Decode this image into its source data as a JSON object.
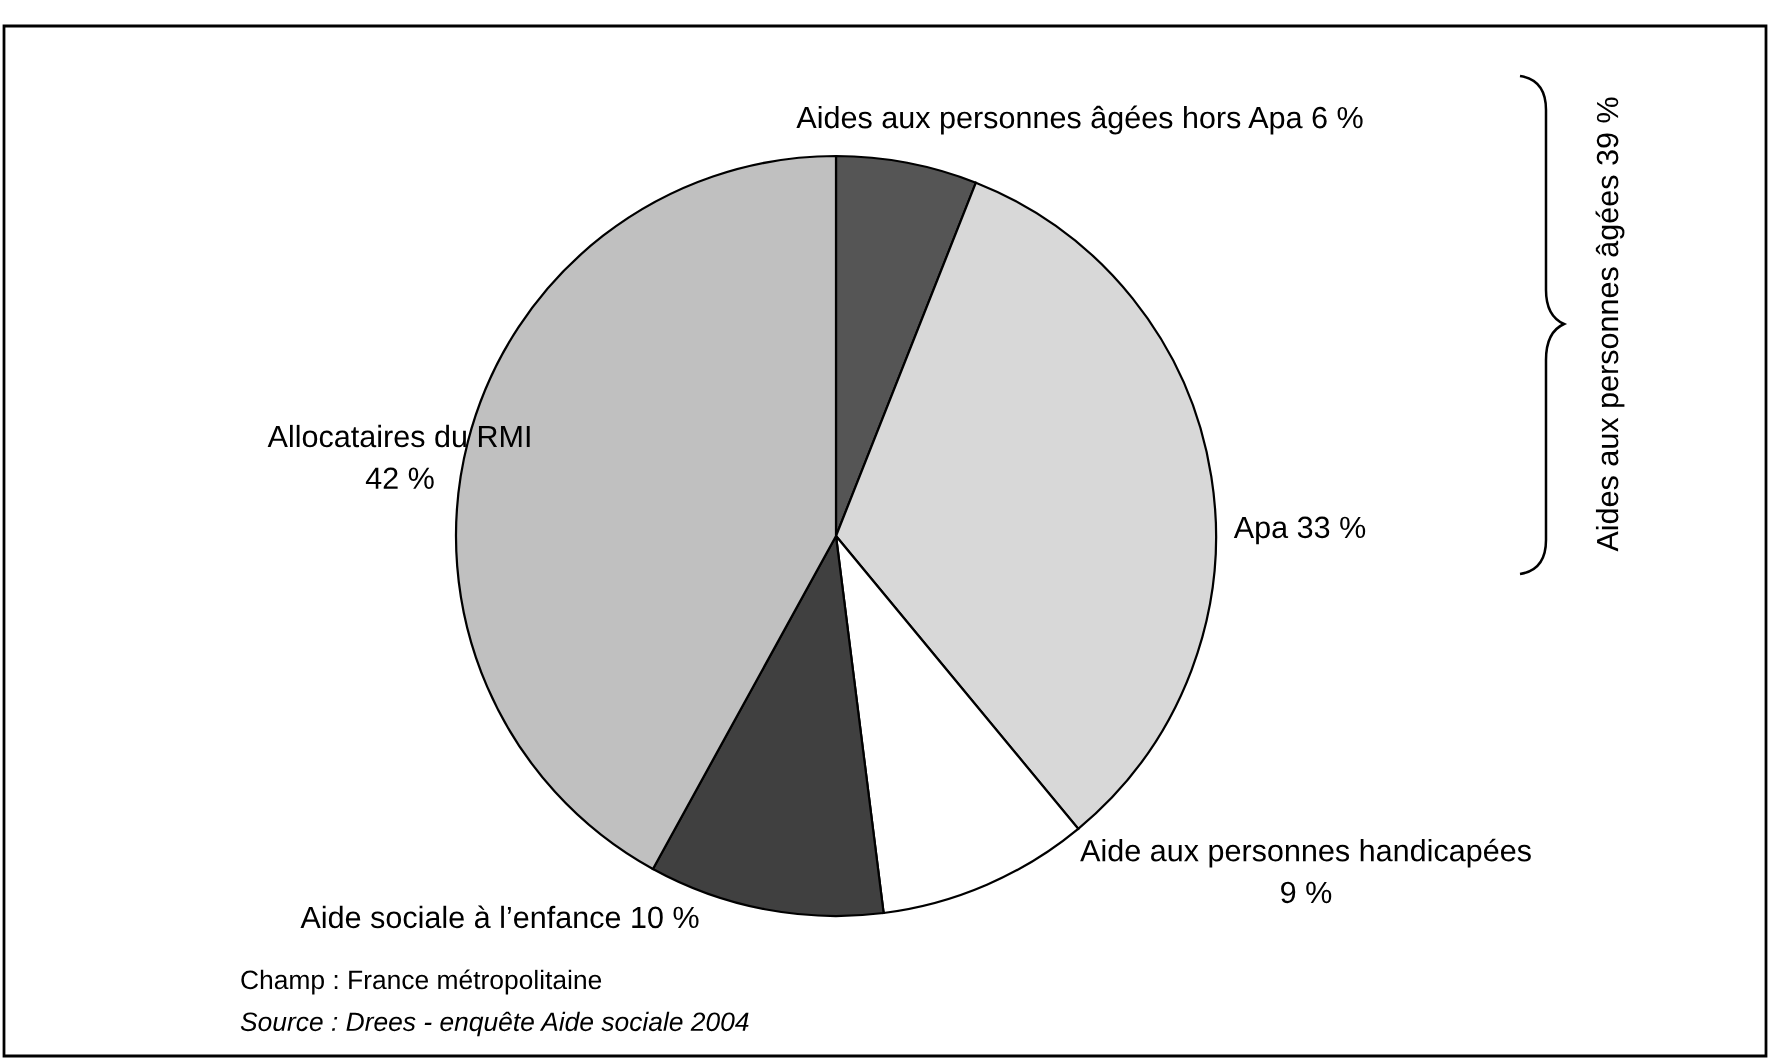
{
  "chart_data": {
    "type": "pie",
    "categories": [
      "Aides aux personnes âgées hors Apa",
      "Apa",
      "Aide aux personnes handicapées",
      "Aide sociale à l’enfance",
      "Allocataires du RMI"
    ],
    "values": [
      6,
      33,
      9,
      10,
      42
    ],
    "value_labels": [
      "6 %",
      "33 %",
      "9 %",
      "10 %",
      "42 %"
    ],
    "colors": [
      "#555555",
      "#d8d8d8",
      "#ffffff",
      "#404040",
      "#c0c0c0"
    ],
    "annotations": [
      "Aides aux personnes âgées 39 %",
      "Champ : France métropolitaine",
      "Source : Drees - enquête Aide sociale 2004"
    ]
  }
}
